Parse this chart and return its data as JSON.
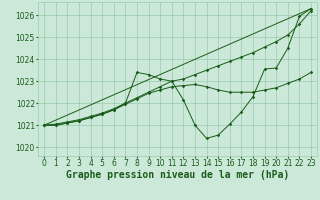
{
  "background_color": "#cce8d8",
  "grid_color": "#99ccb0",
  "line_color": "#1a5c1a",
  "xlabel": "Graphe pression niveau de la mer (hPa)",
  "xlabel_fontsize": 7,
  "tick_fontsize": 5.5,
  "xlim": [
    -0.5,
    23.5
  ],
  "ylim": [
    1019.6,
    1026.6
  ],
  "yticks": [
    1020,
    1021,
    1022,
    1023,
    1024,
    1025,
    1026
  ],
  "xticks": [
    0,
    1,
    2,
    3,
    4,
    5,
    6,
    7,
    8,
    9,
    10,
    11,
    12,
    13,
    14,
    15,
    16,
    17,
    18,
    19,
    20,
    21,
    22,
    23
  ],
  "line1_x": [
    0,
    1,
    2,
    3,
    4,
    5,
    6,
    7,
    8,
    9,
    10,
    11,
    12,
    13,
    14,
    15,
    16,
    17,
    18,
    19,
    20,
    21,
    22,
    23
  ],
  "line1_y": [
    1021.0,
    1021.05,
    1021.15,
    1021.25,
    1021.4,
    1021.55,
    1021.75,
    1022.0,
    1022.25,
    1022.5,
    1022.75,
    1023.0,
    1023.1,
    1023.3,
    1023.5,
    1023.7,
    1023.9,
    1024.1,
    1024.3,
    1024.55,
    1024.8,
    1025.1,
    1025.6,
    1026.2
  ],
  "line2_x": [
    0,
    1,
    2,
    3,
    4,
    5,
    6,
    7,
    8,
    9,
    10,
    11,
    12,
    13,
    14,
    15,
    16,
    17,
    18,
    19,
    20,
    21,
    22,
    23
  ],
  "line2_y": [
    1021.0,
    1021.0,
    1021.1,
    1021.2,
    1021.35,
    1021.5,
    1021.7,
    1022.0,
    1023.4,
    1023.3,
    1023.1,
    1023.0,
    1022.15,
    1021.0,
    1020.4,
    1020.55,
    1021.05,
    1021.6,
    1022.3,
    1023.55,
    1023.6,
    1024.5,
    1025.95,
    1026.3
  ],
  "line3_x": [
    0,
    23
  ],
  "line3_y": [
    1021.0,
    1026.3
  ],
  "line4_x": [
    0,
    1,
    2,
    3,
    4,
    5,
    6,
    7,
    8,
    9,
    10,
    11,
    12,
    13,
    14,
    15,
    16,
    17,
    18,
    19,
    20,
    21,
    22,
    23
  ],
  "line4_y": [
    1021.0,
    1021.0,
    1021.1,
    1021.2,
    1021.35,
    1021.5,
    1021.7,
    1021.95,
    1022.2,
    1022.45,
    1022.6,
    1022.75,
    1022.8,
    1022.85,
    1022.75,
    1022.6,
    1022.5,
    1022.5,
    1022.5,
    1022.6,
    1022.7,
    1022.9,
    1023.1,
    1023.4
  ]
}
